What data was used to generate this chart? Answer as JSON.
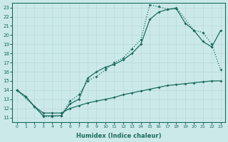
{
  "xlabel": "Humidex (Indice chaleur)",
  "xlim": [
    -0.5,
    23.5
  ],
  "ylim": [
    10.5,
    23.5
  ],
  "xticks": [
    0,
    1,
    2,
    3,
    4,
    5,
    6,
    7,
    8,
    9,
    10,
    11,
    12,
    13,
    14,
    15,
    16,
    17,
    18,
    19,
    20,
    21,
    22,
    23
  ],
  "yticks": [
    11,
    12,
    13,
    14,
    15,
    16,
    17,
    18,
    19,
    20,
    21,
    22,
    23
  ],
  "bg_color": "#cce9e9",
  "line_color": "#1a6b5e",
  "grid_color": "#b8d8d8",
  "line1_x": [
    0,
    2,
    3,
    4,
    5,
    6,
    7,
    8,
    9,
    10,
    11,
    12,
    13,
    14,
    15,
    16,
    17,
    18,
    20,
    21,
    22,
    23
  ],
  "line1_y": [
    14.0,
    12.2,
    11.1,
    11.1,
    11.2,
    12.8,
    13.5,
    15.0,
    15.5,
    16.2,
    17.0,
    17.5,
    18.5,
    19.5,
    23.3,
    23.1,
    22.8,
    23.0,
    20.5,
    20.3,
    19.0,
    16.2
  ],
  "line2_x": [
    0,
    1,
    2,
    3,
    4,
    5,
    6,
    7,
    8,
    9,
    10,
    11,
    12,
    13,
    14,
    15,
    16,
    17,
    18,
    19,
    20,
    21,
    22,
    23
  ],
  "line2_y": [
    14.0,
    13.3,
    12.2,
    11.2,
    11.2,
    11.2,
    12.5,
    13.0,
    15.3,
    16.0,
    16.5,
    16.8,
    17.3,
    18.0,
    19.0,
    21.7,
    22.5,
    22.8,
    22.9,
    21.3,
    20.5,
    19.3,
    18.7,
    20.5
  ],
  "line3_x": [
    0,
    1,
    2,
    3,
    4,
    5,
    6,
    7,
    8,
    9,
    10,
    11,
    12,
    13,
    14,
    15,
    16,
    17,
    18,
    19,
    20,
    21,
    22,
    23
  ],
  "line3_y": [
    14.0,
    13.3,
    12.2,
    11.5,
    11.5,
    11.5,
    12.0,
    12.3,
    12.6,
    12.8,
    13.0,
    13.2,
    13.5,
    13.7,
    13.9,
    14.1,
    14.3,
    14.5,
    14.6,
    14.7,
    14.8,
    14.9,
    15.0,
    15.0
  ]
}
